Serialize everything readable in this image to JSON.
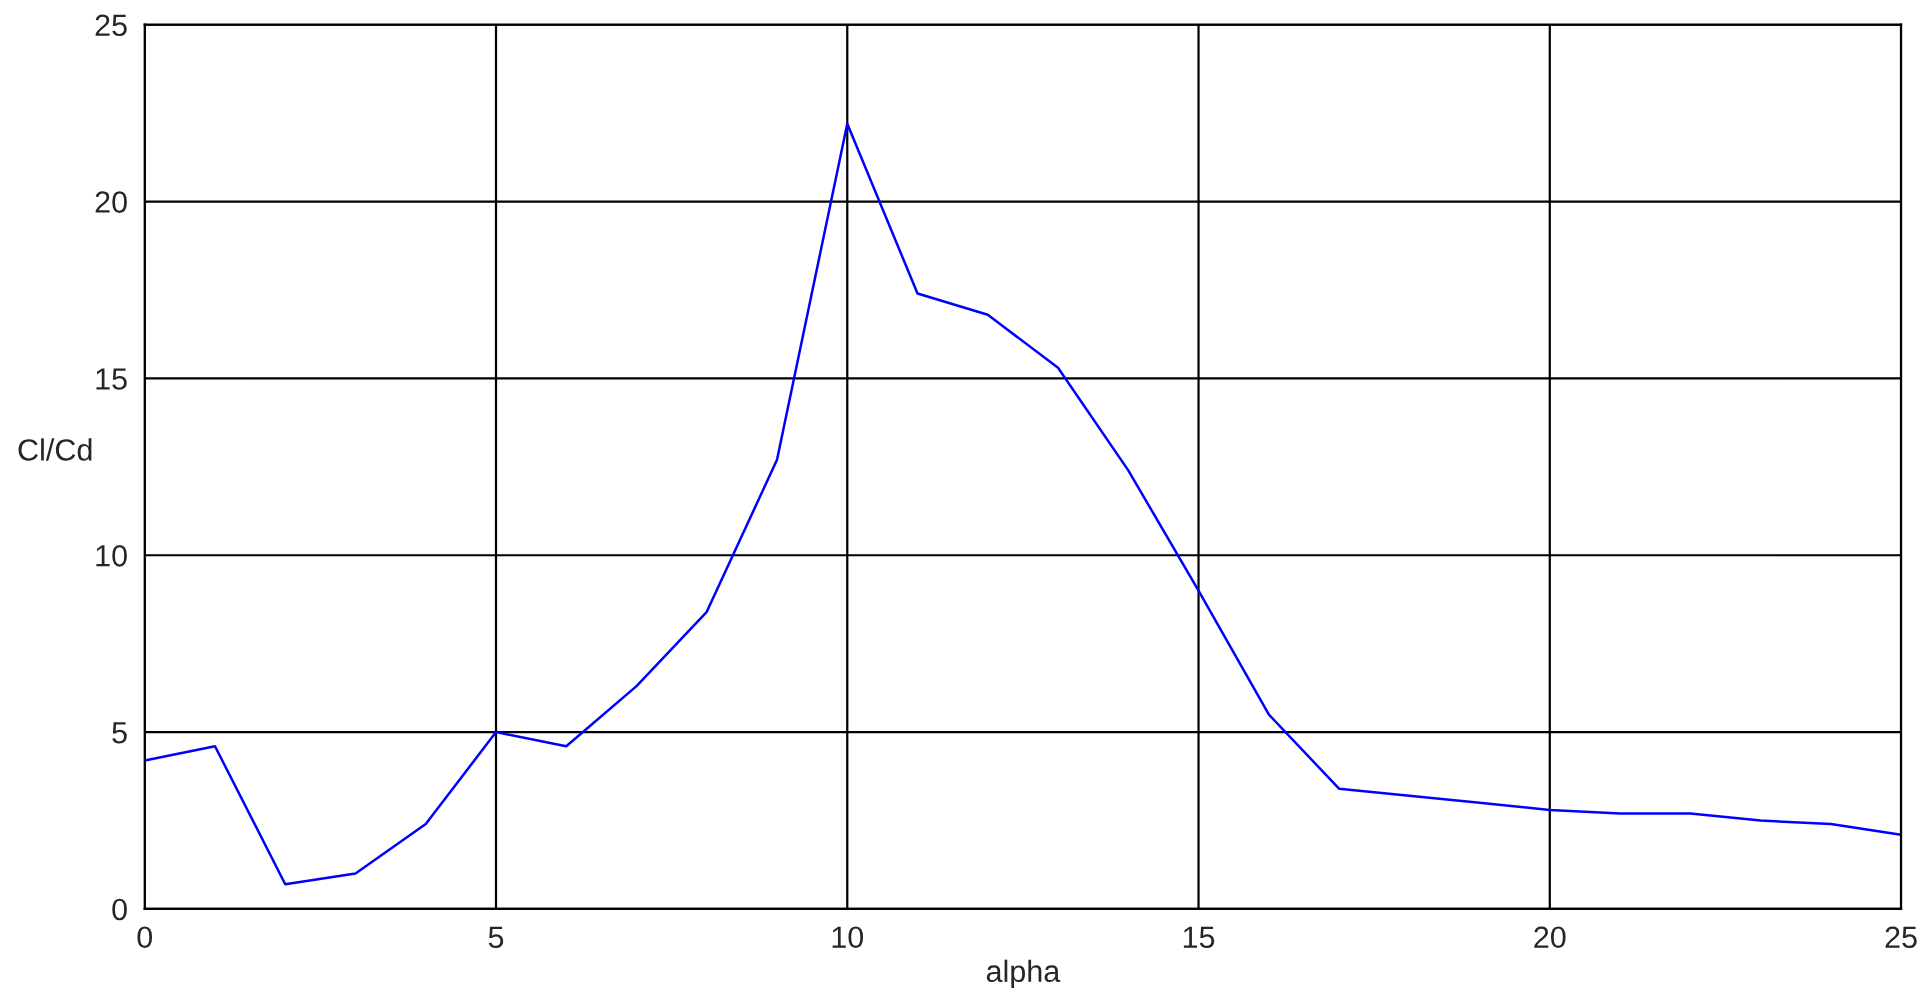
{
  "chart_data": {
    "type": "line",
    "xlabel": "alpha",
    "ylabel": "Cl/Cd",
    "x": [
      0,
      1,
      2,
      3,
      4,
      5,
      6,
      7,
      8,
      9,
      10,
      11,
      12,
      13,
      14,
      15,
      16,
      17,
      18,
      19,
      20,
      21,
      22,
      23,
      24,
      25
    ],
    "series": [
      {
        "color": "#0000ff",
        "values": [
          4.2,
          4.6,
          0.7,
          1.0,
          2.4,
          5.0,
          4.6,
          6.3,
          8.4,
          12.7,
          22.2,
          17.4,
          16.8,
          15.3,
          12.4,
          9.0,
          5.5,
          3.4,
          3.2,
          3.0,
          2.8,
          2.7,
          2.7,
          2.5,
          2.4,
          2.1
        ]
      }
    ],
    "xlim": [
      0,
      25
    ],
    "ylim": [
      0,
      25
    ],
    "xticks": [
      0,
      5,
      10,
      15,
      20,
      25
    ],
    "yticks": [
      0,
      5,
      10,
      15,
      20,
      25
    ],
    "grid": true,
    "line_style": "solid",
    "marker": "none"
  }
}
